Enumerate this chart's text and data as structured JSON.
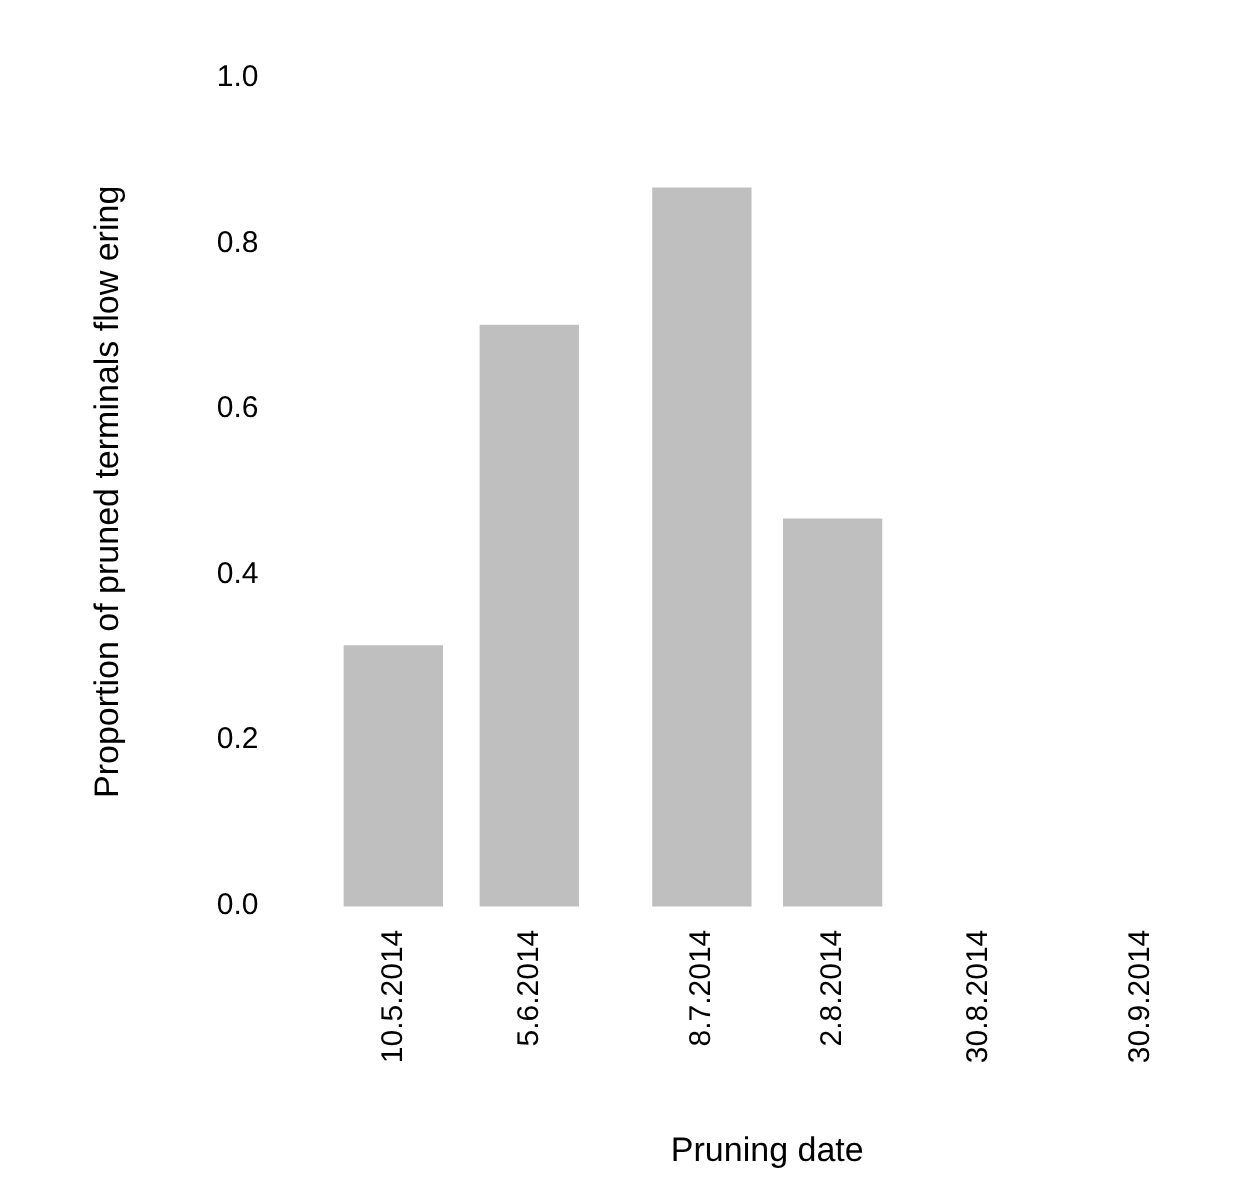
{
  "chart_data": {
    "type": "bar",
    "xlabel": "Pruning date",
    "ylabel": "Proportion of pruned terminals flow ering",
    "x": [
      "2014-05-10",
      "2014-06-05",
      "2014-07-08",
      "2014-08-02"
    ],
    "values": [
      0.314,
      0.701,
      0.867,
      0.467
    ],
    "color": "#bfbfbf",
    "xlim": [
      "2014-05-10",
      "2014-09-30"
    ],
    "xticks": [
      {
        "value": "2014-05-10",
        "label": "10.5.2014"
      },
      {
        "value": "2014-06-05",
        "label": "5.6.2014"
      },
      {
        "value": "2014-07-08",
        "label": "8.7.2014"
      },
      {
        "value": "2014-08-02",
        "label": "2.8.2014"
      },
      {
        "value": "2014-08-30",
        "label": "30.8.2014"
      },
      {
        "value": "2014-09-30",
        "label": "30.9.2014"
      }
    ],
    "ylim": [
      0,
      1
    ],
    "yticks": [
      {
        "value": 0,
        "label": "0.0"
      },
      {
        "value": 0.2,
        "label": "0.2"
      },
      {
        "value": 0.4,
        "label": "0.4"
      },
      {
        "value": 0.6,
        "label": "0.6"
      },
      {
        "value": 0.8,
        "label": "0.8"
      },
      {
        "value": 1,
        "label": "1.0"
      }
    ],
    "grid": false,
    "legend": false
  }
}
